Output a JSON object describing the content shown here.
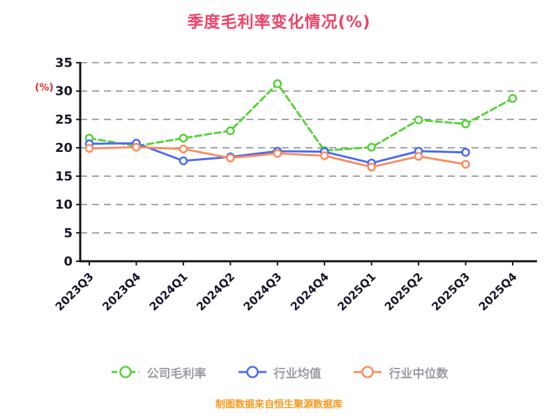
{
  "page": {
    "title": "季度毛利率变化情况(%)",
    "ylabel": "(%)",
    "footer": "制图数据来自恒生聚源数据库"
  },
  "colors": {
    "title": "#ee4266",
    "ylabel": "#e8262d",
    "footer": "#f59b22",
    "axis": "#101018",
    "grid": "#8a8a8a",
    "tick_label": "#15152a",
    "legend_label": "#9b9ba6",
    "series_green": "#53d337",
    "series_blue": "#4a6bee",
    "series_orange": "#fb8d5d",
    "background": "#ffffff"
  },
  "chart_data": {
    "type": "line",
    "title": "季度毛利率变化情况(%)",
    "xlabel": "",
    "ylabel": "(%)",
    "ylim": [
      0,
      35
    ],
    "yticks": [
      0,
      5,
      10,
      15,
      20,
      25,
      30,
      35
    ],
    "grid": "horizontal-dashed",
    "legend_position": "bottom",
    "categories": [
      "2023Q3",
      "2023Q4",
      "2024Q1",
      "2024Q2",
      "2024Q3",
      "2024Q4",
      "2025Q1",
      "2025Q2",
      "2025Q3",
      "2025Q4"
    ],
    "series": [
      {
        "name": "公司毛利率",
        "color": "#53d337",
        "dashed": true,
        "marker": "circle",
        "values": [
          21.7,
          20.3,
          21.7,
          23.0,
          31.3,
          19.5,
          20.1,
          24.9,
          24.2,
          28.7
        ]
      },
      {
        "name": "行业均值",
        "color": "#4a6bee",
        "dashed": false,
        "marker": "circle",
        "values": [
          20.7,
          20.8,
          17.7,
          18.4,
          19.4,
          19.3,
          17.3,
          19.4,
          19.2,
          null
        ]
      },
      {
        "name": "行业中位数",
        "color": "#fb8d5d",
        "dashed": false,
        "marker": "circle",
        "values": [
          19.9,
          20.1,
          19.8,
          18.2,
          19.0,
          18.6,
          16.6,
          18.5,
          17.1,
          null
        ]
      }
    ]
  }
}
